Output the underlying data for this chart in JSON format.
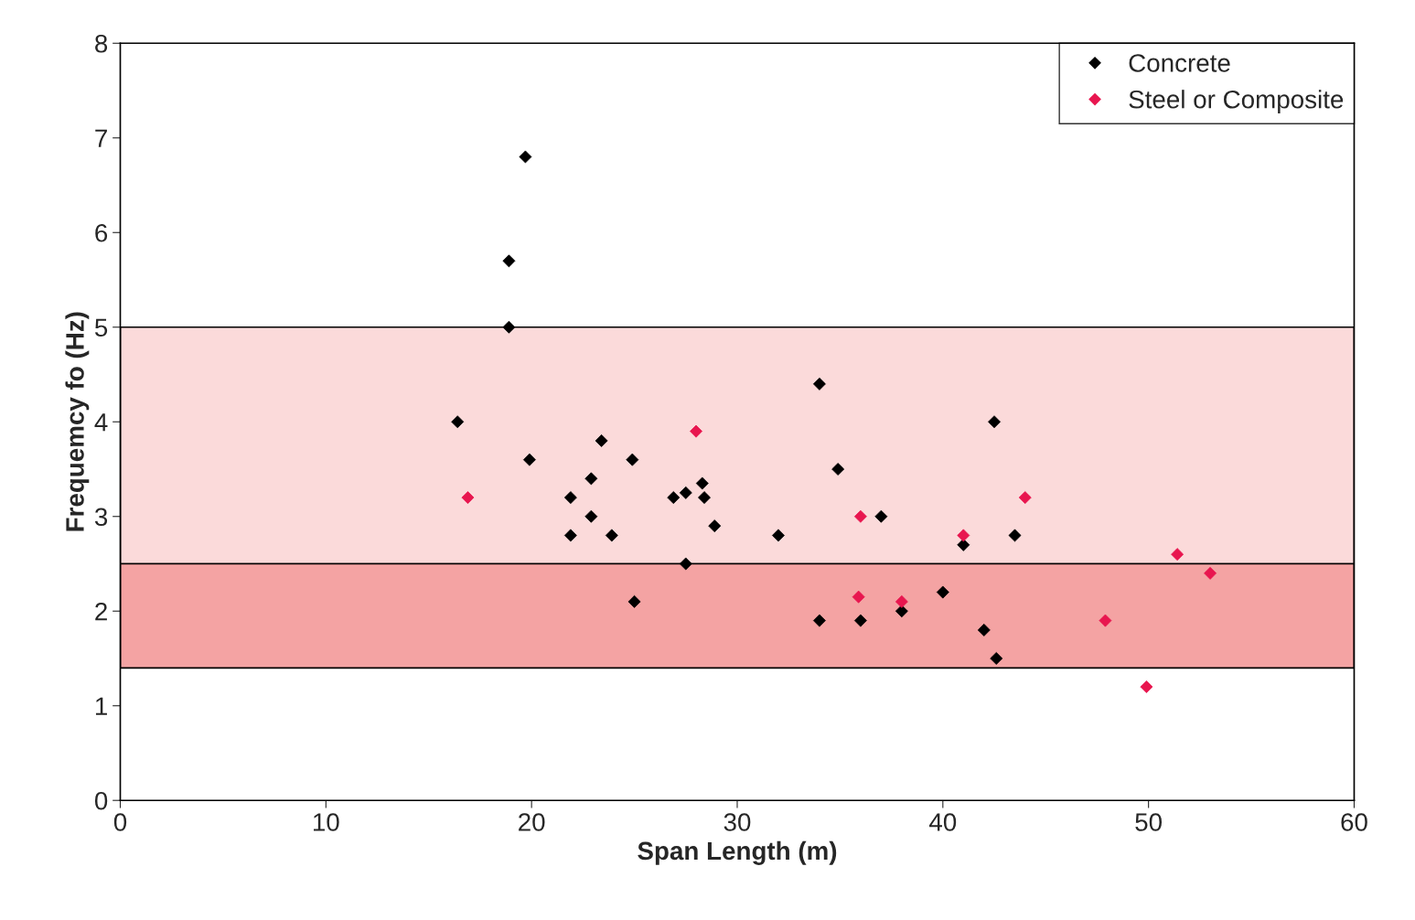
{
  "chart_data": {
    "type": "scatter",
    "xlabel": "Span Length (m)",
    "ylabel": "Frequemcy fo (Hz)",
    "xlim": [
      0,
      60
    ],
    "xticks": [
      0,
      10,
      20,
      30,
      40,
      50,
      60
    ],
    "ylim": [
      0,
      8
    ],
    "yticks": [
      0,
      1,
      2,
      3,
      4,
      5,
      6,
      7,
      8
    ],
    "grid": false,
    "legend": "top right",
    "marker": "diamond",
    "bands": [
      {
        "axis": "y",
        "from": 2.5,
        "to": 5,
        "color": "#fbdada"
      },
      {
        "axis": "y",
        "from": 1.4,
        "to": 2.5,
        "color": "#f4a3a3"
      }
    ],
    "series": [
      {
        "name": "Concrete",
        "color": "#000000",
        "x": [
          19.7,
          18.9,
          18.9,
          16.4,
          19.9,
          21.9,
          21.9,
          22.9,
          22.9,
          23.4,
          23.9,
          24.9,
          25.0,
          26.9,
          27.5,
          27.5,
          28.3,
          28.4,
          28.9,
          32.0,
          34.0,
          34.0,
          34.9,
          36.0,
          37.0,
          38.0,
          40.0,
          41.0,
          42.0,
          42.5,
          42.6,
          43.5
        ],
        "values": [
          6.8,
          5.7,
          5.0,
          4.0,
          3.6,
          3.2,
          2.8,
          3.4,
          3.0,
          3.8,
          2.8,
          3.6,
          2.1,
          3.2,
          3.25,
          2.5,
          3.35,
          3.2,
          2.9,
          2.8,
          4.4,
          1.9,
          3.5,
          1.9,
          3.0,
          2.0,
          2.2,
          2.7,
          1.8,
          4.0,
          1.5,
          2.8
        ]
      },
      {
        "name": "Steel or Composite",
        "color": "#e8164f",
        "x": [
          16.9,
          28.0,
          36.0,
          35.9,
          38.0,
          41.0,
          44.0,
          47.9,
          49.9,
          51.4,
          53.0
        ],
        "values": [
          3.2,
          3.9,
          3.0,
          2.15,
          2.1,
          2.8,
          3.2,
          1.9,
          1.2,
          2.6,
          2.4
        ]
      }
    ]
  }
}
